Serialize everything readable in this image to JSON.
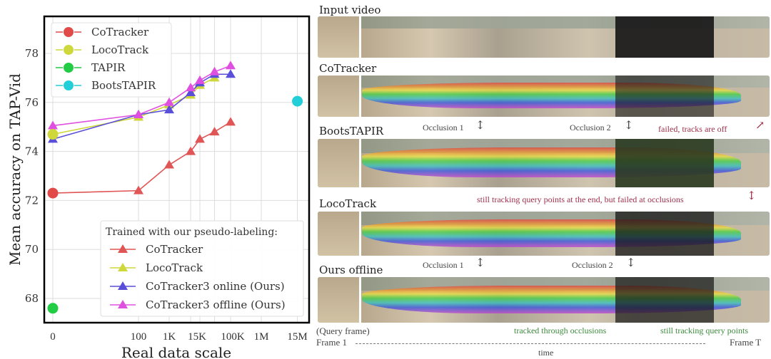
{
  "chart_data": {
    "type": "line",
    "xlabel": "Real data scale",
    "ylabel": "Mean accuracy on TAP-Vid",
    "ylim": [
      67.2,
      79.4
    ],
    "yticks": [
      68,
      70,
      72,
      74,
      76,
      78
    ],
    "xticks": [
      {
        "label": "0",
        "value": 0
      },
      {
        "label": "100",
        "value": 100
      },
      {
        "label": "1K",
        "value": 1000
      },
      {
        "label": "15K",
        "value": 15000
      },
      {
        "label": "100K",
        "value": 100000
      },
      {
        "label": "1M",
        "value": 1000000
      },
      {
        "label": "15M",
        "value": 15000000
      }
    ],
    "grid": true,
    "baselines": [
      {
        "name": "CoTracker",
        "color": "#e24a4a",
        "x": 0,
        "y": 72.3
      },
      {
        "name": "LocoTrack",
        "color": "#cfd83a",
        "x": 0,
        "y": 74.7
      },
      {
        "name": "TAPIR",
        "color": "#22cc44",
        "x": 0,
        "y": 67.6
      },
      {
        "name": "BootsTAPIR",
        "color": "#22cfd8",
        "x": 15000000,
        "y": 76.05
      }
    ],
    "legend_title": "Trained with our pseudo-labeling:",
    "series": [
      {
        "name": "CoTracker",
        "color": "#e05555",
        "x": [
          0,
          100,
          1000,
          5000,
          10000,
          30000,
          100000
        ],
        "values": [
          72.3,
          72.4,
          73.45,
          74.0,
          74.5,
          74.8,
          75.2
        ]
      },
      {
        "name": "LocoTrack",
        "color": "#cfd83a",
        "x": [
          0,
          100,
          1000,
          5000,
          10000,
          30000
        ],
        "values": [
          74.7,
          75.4,
          75.9,
          76.3,
          76.7,
          77.0
        ]
      },
      {
        "name": "CoTracker3 online (Ours)",
        "color": "#5a4fd8",
        "x": [
          0,
          100,
          1000,
          5000,
          10000,
          30000,
          100000
        ],
        "values": [
          74.5,
          75.5,
          75.7,
          76.4,
          76.8,
          77.15,
          77.15
        ]
      },
      {
        "name": "CoTracker3 offline (Ours)",
        "color": "#e050e0",
        "x": [
          0,
          100,
          1000,
          5000,
          10000,
          30000,
          100000
        ],
        "values": [
          75.05,
          75.5,
          76.0,
          76.6,
          76.9,
          77.25,
          77.5
        ]
      }
    ],
    "legend_placement": [
      "top-left",
      "bottom-right"
    ]
  },
  "panel": {
    "rows": [
      "Input video",
      "CoTracker",
      "BootsTAPIR",
      "LocoTrack",
      "Ours offline"
    ],
    "occlusion1": "Occlusion 1",
    "occlusion2": "Occlusion 2",
    "failed": "failed, tracks are off",
    "still_failed": "still tracking query points at the end, but failed at occlusions",
    "query_frame": "(Query frame)",
    "tracked_through": "tracked through occlusions",
    "still_tracking": "still tracking query points",
    "frame1": "Frame 1",
    "frameT": "Frame T",
    "time": "time"
  }
}
